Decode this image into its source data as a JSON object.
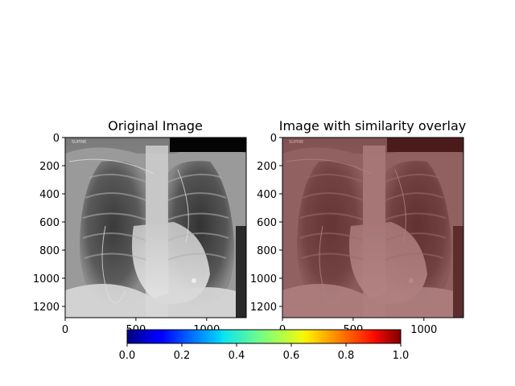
{
  "panels": [
    {
      "title": "Original Image",
      "xticks": [
        "0",
        "500",
        "1000"
      ],
      "yticks": [
        "0",
        "200",
        "400",
        "600",
        "800",
        "1000",
        "1200"
      ],
      "corner_text": "SUPINE"
    },
    {
      "title": "Image with similarity overlay",
      "xticks": [
        "0",
        "500",
        "1000"
      ],
      "yticks": [
        "0",
        "200",
        "400",
        "600",
        "800",
        "1000",
        "1200"
      ],
      "corner_text": "SUPINE"
    }
  ],
  "colorbar": {
    "ticks": [
      "0.0",
      "0.2",
      "0.4",
      "0.6",
      "0.8",
      "1.0"
    ],
    "colormap": "jet"
  },
  "image_extent": {
    "width": 1280,
    "height": 1280
  },
  "overlay_color": "#8b3a3a"
}
